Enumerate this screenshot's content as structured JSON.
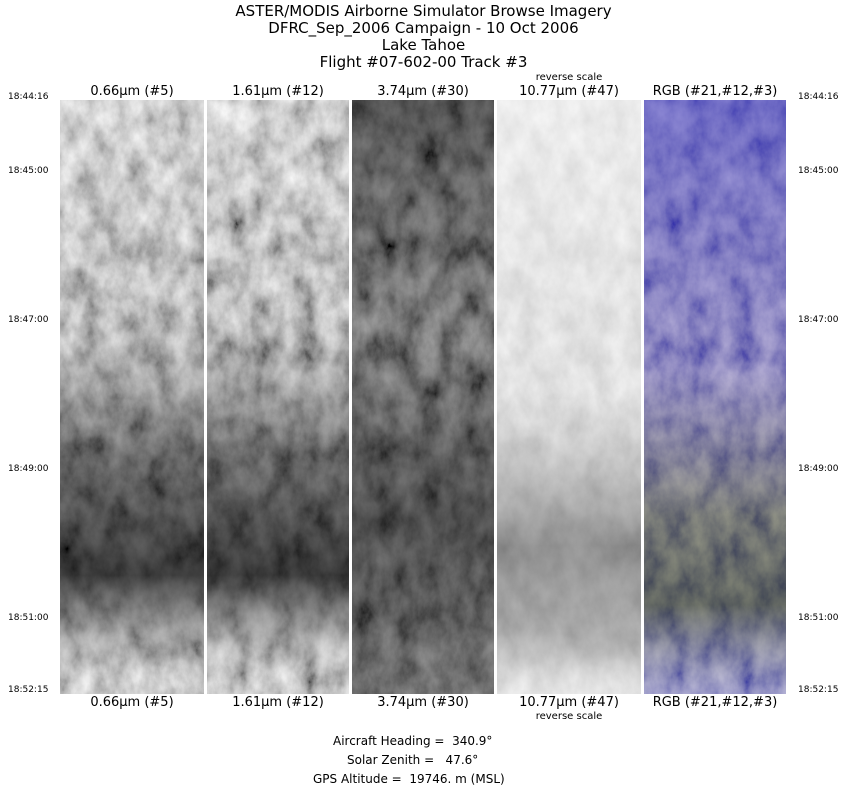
{
  "title_lines": [
    "ASTER/MODIS Airborne Simulator Browse Imagery",
    "DFRC_Sep_2006 Campaign - 10 Oct 2006",
    "Lake Tahoe",
    "Flight #07-602-00 Track #3"
  ],
  "panels": [
    {
      "label": "0.66μm (#5)",
      "note": "",
      "palette": "grayscale"
    },
    {
      "label": "1.61μm (#12)",
      "note": "",
      "palette": "grayscale"
    },
    {
      "label": "3.74μm (#30)",
      "note": "",
      "palette": "grayscale"
    },
    {
      "label": "10.77μm (#47)",
      "note": "reverse scale",
      "palette": "grayscale-reversed"
    },
    {
      "label": "RGB (#21,#12,#3)",
      "note": "",
      "palette": "false-color"
    }
  ],
  "time_ticks": [
    "18:44:16",
    "18:45:00",
    "18:47:00",
    "18:49:00",
    "18:51:00",
    "18:52:15"
  ],
  "info": {
    "heading": "Aircraft Heading =  340.9°",
    "zenith": "Solar Zenith =   47.6°",
    "altitude": "GPS Altitude =  19746. m (MSL)"
  }
}
